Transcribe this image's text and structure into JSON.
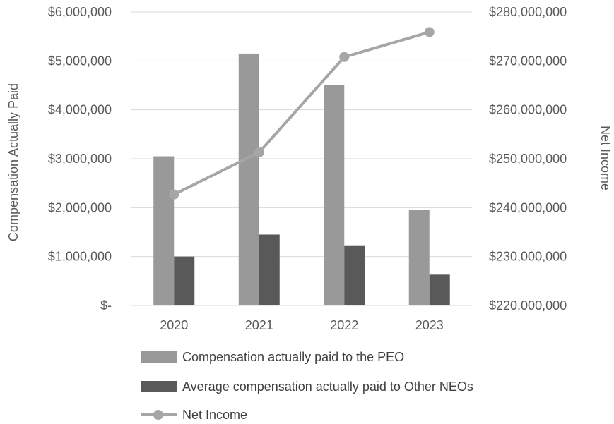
{
  "chart_data": {
    "type": "bar",
    "categories": [
      "2020",
      "2021",
      "2022",
      "2023"
    ],
    "series": [
      {
        "name": "Compensation actually paid to the PEO",
        "type": "bar",
        "axis": "left",
        "color": "#999999",
        "values": [
          3050000,
          5150000,
          4500000,
          1950000
        ]
      },
      {
        "name": "Average compensation actually paid to Other NEOs",
        "type": "bar",
        "axis": "left",
        "color": "#595959",
        "values": [
          1000000,
          1450000,
          1230000,
          630000
        ]
      },
      {
        "name": "Net Income",
        "type": "line",
        "axis": "right",
        "color": "#a6a6a6",
        "marker": "circle",
        "values": [
          242700000,
          251300000,
          270800000,
          275900000
        ]
      }
    ],
    "ylabel": "Compensation Actually Paid",
    "ylabel_right": "Net Income",
    "ylim": [
      0,
      6000000
    ],
    "ylim_right": [
      220000000,
      280000000
    ],
    "yticks": [
      "$-",
      "$1,000,000",
      "$2,000,000",
      "$3,000,000",
      "$4,000,000",
      "$5,000,000",
      "$6,000,000"
    ],
    "yticks_right": [
      "$220,000,000",
      "$230,000,000",
      "$240,000,000",
      "$250,000,000",
      "$260,000,000",
      "$270,000,000",
      "$280,000,000"
    ],
    "grid": true,
    "legend_position": "bottom"
  }
}
